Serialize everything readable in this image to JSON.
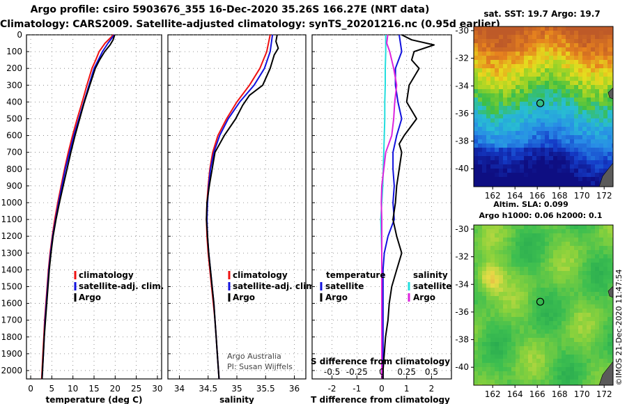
{
  "header": {
    "title_line1": "Argo profile: csiro 5903676_355 16-Dec-2020 35.26S 166.27E (NRT data)",
    "title_line2": "Climatology: CARS2009. Satellite-adjusted climatology: synTS_20201216.nc (0.95d earlier)"
  },
  "colors": {
    "climatology": "#ee1111",
    "satellite": "#1111dd",
    "argo": "#000000",
    "salinity_diff": "#22dddd",
    "sat_salinity_diff": "#dd22dd"
  },
  "depth_axis": {
    "ticks": [
      0,
      100,
      200,
      300,
      400,
      500,
      600,
      700,
      800,
      900,
      1000,
      1100,
      1200,
      1300,
      1400,
      1500,
      1600,
      1700,
      1800,
      1900,
      2000
    ],
    "range": [
      0,
      2050
    ]
  },
  "footer": {
    "credit_line1": "Argo Australia",
    "credit_line2": "PI: Susan Wijffels",
    "watermark": "©IMOS 21-Dec-2020 11:47:54"
  },
  "chart_data": [
    {
      "type": "line",
      "id": "temperature",
      "xlabel": "temperature (deg C)",
      "ylabel": "depth",
      "xlim": [
        -1,
        31
      ],
      "xticks": [
        0,
        5,
        10,
        15,
        20,
        25,
        30
      ],
      "ylim": [
        0,
        2050
      ],
      "legend": [
        "climatology",
        "satellite-adj. clim.",
        "Argo"
      ],
      "series": [
        {
          "name": "climatology",
          "color": "#ee1111",
          "depth": [
            0,
            50,
            100,
            150,
            200,
            300,
            400,
            500,
            600,
            700,
            800,
            900,
            1000,
            1100,
            1200,
            1300,
            1400,
            1500,
            1600,
            1700,
            1800,
            1900,
            2000,
            2050
          ],
          "values": [
            19.6,
            17.6,
            16.2,
            15.4,
            14.5,
            13.3,
            12.2,
            11.0,
            9.9,
            8.9,
            8.0,
            7.2,
            6.4,
            5.7,
            5.1,
            4.6,
            4.2,
            3.9,
            3.6,
            3.3,
            3.1,
            2.9,
            2.7,
            2.6
          ]
        },
        {
          "name": "satellite-adj. clim.",
          "color": "#1111dd",
          "depth": [
            0,
            50,
            100,
            150,
            200,
            300,
            400,
            500,
            600,
            700,
            800,
            900,
            1000,
            1100,
            1200,
            1300,
            1400,
            1500,
            1600,
            1700,
            1800,
            1900,
            2000,
            2050
          ],
          "values": [
            19.8,
            18.3,
            17.0,
            16.0,
            15.0,
            13.8,
            12.6,
            11.4,
            10.2,
            9.2,
            8.2,
            7.4,
            6.6,
            5.9,
            5.2,
            4.7,
            4.3,
            4.0,
            3.7,
            3.4,
            3.2,
            3.0,
            2.8,
            2.7
          ]
        },
        {
          "name": "Argo",
          "color": "#000000",
          "depth": [
            0,
            30,
            60,
            100,
            150,
            200,
            300,
            400,
            500,
            600,
            700,
            800,
            900,
            1000,
            1100,
            1200,
            1300,
            1400,
            1500,
            1600,
            1700,
            1800,
            1900,
            2000,
            2050
          ],
          "values": [
            19.9,
            19.5,
            18.8,
            17.5,
            16.3,
            15.3,
            14.0,
            12.7,
            11.6,
            10.5,
            9.5,
            8.6,
            7.7,
            6.8,
            6.0,
            5.3,
            4.8,
            4.4,
            4.1,
            3.8,
            3.5,
            3.2,
            3.0,
            2.8,
            2.7
          ]
        }
      ]
    },
    {
      "type": "line",
      "id": "salinity",
      "xlabel": "salinity",
      "ylabel": "depth",
      "xlim": [
        33.8,
        36.2
      ],
      "xticks": [
        34,
        34.5,
        35,
        35.5,
        36
      ],
      "xticklabels": [
        "34",
        "34.5",
        "35",
        "35.5",
        "36"
      ],
      "ylim": [
        0,
        2050
      ],
      "legend": [
        "climatology",
        "satellite-adj. clim.",
        "Argo"
      ],
      "series": [
        {
          "name": "climatology",
          "color": "#ee1111",
          "depth": [
            0,
            100,
            200,
            300,
            400,
            500,
            600,
            700,
            800,
            900,
            1000,
            1100,
            1200,
            1300,
            1400,
            1500,
            1600,
            1700,
            1800,
            1900,
            2000,
            2050
          ],
          "values": [
            35.58,
            35.52,
            35.4,
            35.22,
            35.0,
            34.82,
            34.67,
            34.58,
            34.53,
            34.5,
            34.48,
            34.47,
            34.48,
            34.5,
            34.53,
            34.56,
            34.59,
            34.62,
            34.64,
            34.66,
            34.68,
            34.69
          ]
        },
        {
          "name": "satellite-adj. clim.",
          "color": "#1111dd",
          "depth": [
            0,
            100,
            200,
            300,
            400,
            500,
            600,
            700,
            800,
            900,
            1000,
            1100,
            1200,
            1300,
            1400,
            1500,
            1600,
            1700,
            1800,
            1900,
            2000,
            2050
          ],
          "values": [
            35.62,
            35.58,
            35.48,
            35.3,
            35.05,
            34.85,
            34.7,
            34.6,
            34.54,
            34.51,
            34.49,
            34.48,
            34.49,
            34.51,
            34.54,
            34.57,
            34.6,
            34.62,
            34.64,
            34.66,
            34.68,
            34.69
          ]
        },
        {
          "name": "Argo",
          "color": "#000000",
          "depth": [
            0,
            40,
            80,
            120,
            200,
            300,
            360,
            420,
            500,
            600,
            700,
            800,
            900,
            1000,
            1100,
            1200,
            1300,
            1400,
            1500,
            1600,
            1700,
            1800,
            1900,
            2000,
            2050
          ],
          "values": [
            35.7,
            35.68,
            35.72,
            35.65,
            35.58,
            35.45,
            35.22,
            35.1,
            34.98,
            34.78,
            34.62,
            34.57,
            34.52,
            34.48,
            34.47,
            34.49,
            34.51,
            34.54,
            34.57,
            34.6,
            34.62,
            34.64,
            34.66,
            34.68,
            34.69
          ]
        }
      ]
    },
    {
      "type": "line",
      "id": "difference",
      "xlabel": "T difference from climatology",
      "xlabel_top": "S difference from climatology",
      "ylabel": "depth",
      "xlim": [
        -2.8,
        2.8
      ],
      "xticks": [
        -2,
        -1,
        0,
        1,
        2
      ],
      "xticklabels": [
        "-2",
        "-1",
        "0",
        "1",
        "2"
      ],
      "xticks_top": [
        -0.5,
        -0.25,
        0,
        0.25,
        0.5
      ],
      "xticklabels_top": [
        "-0.5",
        "-0.25",
        "0",
        "0.25",
        "0.5"
      ],
      "s_scale": 4,
      "ylim": [
        0,
        2050
      ],
      "legend_temperature_title": "temperature",
      "legend_salinity_title": "salinity",
      "legend_temperature": [
        "satellite",
        "Argo"
      ],
      "legend_salinity": [
        "satellite",
        "Argo"
      ],
      "series": [
        {
          "name": "temperature satellite",
          "color": "#1111dd",
          "depth": [
            0,
            100,
            200,
            300,
            400,
            500,
            600,
            700,
            800,
            900,
            1000,
            1100,
            1200,
            1300,
            1400,
            1500,
            1600,
            1700,
            1800,
            1900,
            2000,
            2050
          ],
          "values": [
            0.7,
            0.8,
            0.55,
            0.55,
            0.65,
            0.8,
            0.6,
            0.45,
            0.45,
            0.5,
            0.45,
            0.5,
            0.25,
            0.1,
            0.05,
            0.05,
            0.05,
            0.05,
            0.05,
            0.05,
            0.05,
            0.05
          ]
        },
        {
          "name": "temperature Argo",
          "color": "#000000",
          "depth": [
            0,
            30,
            60,
            100,
            150,
            200,
            300,
            400,
            500,
            600,
            650,
            700,
            800,
            900,
            1000,
            1100,
            1200,
            1300,
            1400,
            1500,
            1600,
            1700,
            1800,
            1900,
            2000,
            2050
          ],
          "values": [
            0.8,
            1.2,
            2.1,
            1.3,
            1.2,
            1.5,
            1.1,
            1.0,
            1.4,
            0.9,
            0.7,
            0.8,
            0.7,
            0.6,
            0.55,
            0.45,
            0.6,
            0.8,
            0.6,
            0.4,
            0.3,
            0.25,
            0.15,
            0.1,
            0.05,
            0.05
          ]
        },
        {
          "name": "salinity satellite",
          "color": "#22dddd",
          "depth": [
            0,
            100,
            200,
            300,
            400,
            500,
            600,
            700,
            800,
            900,
            1000,
            1100,
            1200,
            1300,
            1400,
            1500,
            1600,
            1700,
            1800,
            1900,
            2000,
            2050
          ],
          "values": [
            0.04,
            0.04,
            0.035,
            0.035,
            0.03,
            0.03,
            0.025,
            0.02,
            0.015,
            0.01,
            0.0,
            -0.01,
            -0.005,
            0.0,
            0.0,
            0.0,
            0.0,
            0.0,
            0.0,
            0.0,
            0.0,
            0.0
          ]
        },
        {
          "name": "salinity Argo",
          "color": "#dd22dd",
          "depth": [
            0,
            50,
            100,
            200,
            300,
            400,
            500,
            600,
            700,
            800,
            900,
            1000,
            1100,
            1200,
            1300,
            1400,
            1500,
            1600,
            1700,
            1800,
            1900,
            2000,
            2050
          ],
          "values": [
            0.06,
            0.05,
            0.08,
            0.12,
            0.15,
            0.13,
            0.12,
            0.1,
            0.04,
            0.02,
            0.0,
            -0.005,
            0.0,
            0.0,
            0.0,
            0.0,
            0.0,
            0.0,
            0.0,
            0.0,
            0.0,
            0.0,
            0.0
          ]
        }
      ]
    },
    {
      "type": "heatmap",
      "id": "sst_map",
      "title": "sat. SST: 19.7 Argo: 19.7",
      "xticks": [
        162,
        164,
        166,
        168,
        170,
        172
      ],
      "yticks": [
        -30,
        -32,
        -34,
        -36,
        -38,
        -40
      ],
      "xlim": [
        160.3,
        172.8
      ],
      "ylim": [
        -41.3,
        -29.7
      ],
      "marker": {
        "lon": 166.27,
        "lat": -35.26
      }
    },
    {
      "type": "heatmap",
      "id": "sla_map",
      "title_line1": "Altim. SLA: 0.099",
      "title_line2": "Argo h1000: 0.06 h2000: 0.1",
      "xticks": [
        162,
        164,
        166,
        168,
        170,
        172
      ],
      "yticks": [
        -30,
        -32,
        -34,
        -36,
        -38,
        -40
      ],
      "xlim": [
        160.3,
        172.8
      ],
      "ylim": [
        -41.3,
        -29.7
      ],
      "marker": {
        "lon": 166.27,
        "lat": -35.26
      }
    }
  ]
}
